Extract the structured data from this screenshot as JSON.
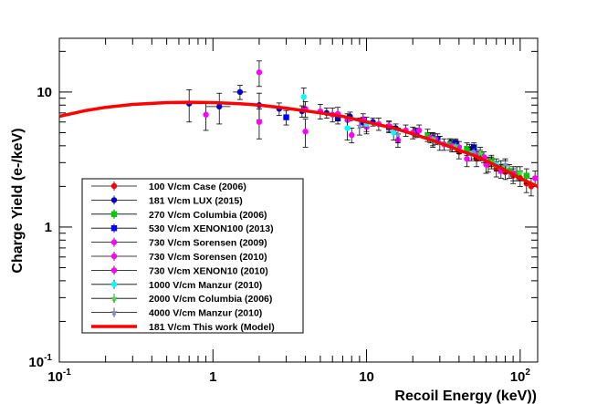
{
  "chart_data": {
    "type": "scatter",
    "xlabel": "Recoil Energy (keV))",
    "ylabel": "Charge Yield (e-/keV)",
    "xscale": "log",
    "yscale": "log",
    "xlim": [
      0.1,
      130
    ],
    "ylim": [
      0.1,
      25
    ],
    "xticks": [
      {
        "value": 0.1,
        "base": "10",
        "exp": "-1"
      },
      {
        "value": 1,
        "base": "1",
        "exp": ""
      },
      {
        "value": 10,
        "base": "10",
        "exp": ""
      },
      {
        "value": 100,
        "base": "10",
        "exp": "2"
      }
    ],
    "yticks": [
      {
        "value": 0.1,
        "base": "10",
        "exp": "-1"
      },
      {
        "value": 1,
        "base": "1",
        "exp": ""
      },
      {
        "value": 10,
        "base": "10",
        "exp": ""
      }
    ],
    "grid": false,
    "legend_position": "bottom-left",
    "series": [
      {
        "name": "100 V/cm Case (2006)",
        "color": "#ff0000",
        "marker": "circle",
        "points": [
          [
            40,
            3.6
          ],
          [
            52,
            3.2
          ],
          [
            62,
            2.9
          ],
          [
            70,
            2.7
          ],
          [
            80,
            2.55
          ],
          [
            90,
            2.4
          ],
          [
            100,
            2.3
          ],
          [
            110,
            2.1
          ],
          [
            118,
            2.0
          ]
        ],
        "errors": [
          0.4,
          0.4,
          0.35,
          0.35,
          0.3,
          0.3,
          0.3,
          0.3,
          0.3
        ]
      },
      {
        "name": "181 V/cm LUX (2015)",
        "color": "#0000cc",
        "marker": "circle",
        "points": [
          [
            0.7,
            8.2
          ],
          [
            1.1,
            7.8
          ],
          [
            1.5,
            10.0
          ],
          [
            2.0,
            8.0
          ],
          [
            2.7,
            7.5
          ],
          [
            3.8,
            7.2
          ],
          [
            5.5,
            7.0
          ],
          [
            7.8,
            6.6
          ],
          [
            11,
            6.0
          ],
          [
            15.5,
            5.4
          ],
          [
            21,
            5.0
          ],
          [
            27,
            4.6
          ],
          [
            35,
            4.2
          ],
          [
            47,
            3.8
          ]
        ],
        "errors": [
          2.2,
          2.0,
          1.2,
          1.8,
          0.8,
          0.7,
          0.6,
          0.5,
          0.4,
          0.4,
          0.3,
          0.3,
          0.3,
          0.3
        ],
        "xerrors": [
          0.15,
          0.2,
          0.15,
          0,
          0,
          0,
          0,
          0,
          0,
          0,
          0,
          0,
          0,
          0
        ]
      },
      {
        "name": "270 V/cm Columbia (2006)",
        "color": "#00cc00",
        "marker": "square",
        "points": [
          [
            25,
            4.8
          ],
          [
            35,
            4.1
          ],
          [
            45,
            3.8
          ],
          [
            55,
            3.4
          ],
          [
            65,
            3.1
          ],
          [
            75,
            2.8
          ],
          [
            85,
            2.6
          ],
          [
            95,
            2.5
          ],
          [
            110,
            2.4
          ]
        ],
        "errors": [
          0.5,
          0.4,
          0.4,
          0.3,
          0.3,
          0.3,
          0.3,
          0.3,
          0.3
        ]
      },
      {
        "name": "530 V/cm XENON100 (2013)",
        "color": "#0000ff",
        "marker": "square",
        "points": [
          [
            3.0,
            6.5
          ],
          [
            6.5,
            6.4
          ],
          [
            9.5,
            6.0
          ],
          [
            14,
            5.5
          ],
          [
            21,
            5.0
          ],
          [
            29,
            4.5
          ],
          [
            38,
            4.2
          ],
          [
            50,
            3.9
          ]
        ],
        "errors": [
          0.8,
          0.6,
          0.5,
          0.5,
          0.4,
          0.4,
          0.3,
          0.3
        ]
      },
      {
        "name": "730 V/cm Sorensen (2009)",
        "color": "#ff00ff",
        "marker": "circle",
        "points": [
          [
            0.9,
            6.8
          ],
          [
            2.0,
            14.0
          ],
          [
            4.0,
            5.1
          ],
          [
            6.0,
            6.8
          ],
          [
            8.0,
            4.8
          ],
          [
            10,
            5.5
          ],
          [
            16,
            4.4
          ],
          [
            22,
            5.2
          ],
          [
            32,
            4.1
          ],
          [
            45,
            3.2
          ],
          [
            60,
            2.9
          ],
          [
            75,
            2.6
          ],
          [
            90,
            2.5
          ],
          [
            125,
            2.3
          ]
        ],
        "errors": [
          1.6,
          3.0,
          1.2,
          0.8,
          0.6,
          0.6,
          0.5,
          0.5,
          0.4,
          0.4,
          0.4,
          0.3,
          0.3,
          0.3
        ]
      },
      {
        "name": "730 V/cm Sorensen (2010)",
        "color": "#ff00ff",
        "marker": "circle",
        "points": [
          [
            2.0,
            6.0
          ],
          [
            5.0,
            7.2
          ],
          [
            7.5,
            6.2
          ],
          [
            12,
            5.8
          ],
          [
            18,
            5.2
          ],
          [
            26,
            4.6
          ],
          [
            36,
            4.0
          ],
          [
            52,
            3.4
          ]
        ],
        "errors": [
          1.5,
          0.9,
          0.7,
          0.6,
          0.5,
          0.4,
          0.4,
          0.3
        ]
      },
      {
        "name": "730 V/cm XENON10 (2010)",
        "color": "#ff00ff",
        "marker": "circle",
        "points": [
          [
            4.0,
            7.5
          ],
          [
            6.5,
            6.9
          ],
          [
            9.5,
            6.3
          ],
          [
            14,
            5.6
          ],
          [
            20,
            5.0
          ],
          [
            28,
            4.5
          ],
          [
            40,
            3.9
          ],
          [
            58,
            3.3
          ]
        ],
        "errors": [
          1.0,
          0.8,
          0.6,
          0.5,
          0.5,
          0.4,
          0.4,
          0.3
        ]
      },
      {
        "name": "1000 V/cm Manzur (2010)",
        "color": "#00ffff",
        "marker": "circle",
        "points": [
          [
            3.9,
            9.2
          ],
          [
            7.5,
            5.4
          ],
          [
            10,
            5.8
          ],
          [
            15,
            5.0
          ],
          [
            27,
            4.4
          ],
          [
            48,
            3.5
          ],
          [
            70,
            2.9
          ]
        ],
        "errors": [
          1.5,
          1.0,
          0.7,
          0.6,
          0.5,
          0.4,
          0.3
        ]
      },
      {
        "name": "2000 V/cm Columbia (2006)",
        "color": "#44dd44",
        "marker": "star",
        "points": [
          [
            27,
            4.5
          ],
          [
            38,
            4.0
          ],
          [
            55,
            3.5
          ],
          [
            65,
            3.0
          ],
          [
            80,
            2.8
          ],
          [
            100,
            2.5
          ]
        ],
        "errors": [
          0.5,
          0.4,
          0.4,
          0.3,
          0.3,
          0.3
        ]
      },
      {
        "name": "4000 V/cm  Manzur (2010)",
        "color": "#8888cc",
        "marker": "star",
        "points": [
          [
            9.0,
            5.6
          ],
          [
            16,
            4.8
          ],
          [
            30,
            4.2
          ],
          [
            50,
            3.6
          ],
          [
            80,
            2.9
          ]
        ],
        "errors": [
          0.8,
          0.6,
          0.5,
          0.4,
          0.3
        ]
      },
      {
        "name": "181 V/cm This work  (Model)",
        "color": "#ff0000",
        "marker": "line",
        "curve": [
          [
            0.1,
            6.6
          ],
          [
            0.15,
            7.3
          ],
          [
            0.2,
            7.7
          ],
          [
            0.3,
            8.1
          ],
          [
            0.5,
            8.35
          ],
          [
            0.7,
            8.4
          ],
          [
            1,
            8.35
          ],
          [
            1.5,
            8.2
          ],
          [
            2,
            8.0
          ],
          [
            3,
            7.6
          ],
          [
            5,
            7.0
          ],
          [
            7,
            6.6
          ],
          [
            10,
            6.0
          ],
          [
            15,
            5.4
          ],
          [
            20,
            4.9
          ],
          [
            30,
            4.2
          ],
          [
            40,
            3.7
          ],
          [
            50,
            3.4
          ],
          [
            70,
            2.85
          ],
          [
            100,
            2.3
          ],
          [
            130,
            2.0
          ]
        ]
      }
    ]
  }
}
